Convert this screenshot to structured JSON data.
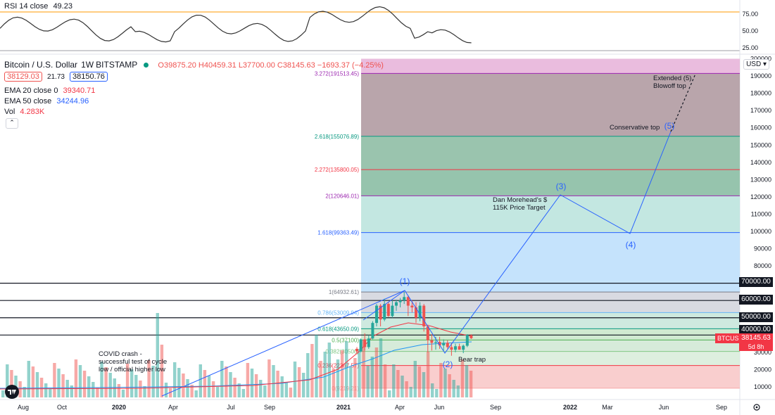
{
  "header": {
    "title": "Bitcoin / U.S. Dollar",
    "interval": "1W",
    "exchange": "BITSTAMP",
    "ohlc": {
      "o": "O39875.20",
      "h": "H40459.31",
      "l": "L37700.00",
      "c": "C38145.63",
      "chg": "−1693.37 (−4.25%)"
    },
    "bid": "38129.03",
    "spread": "21.73",
    "ask": "38150.76",
    "ema20_label": "EMA 20 close 0",
    "ema20_value": "39340.71",
    "ema50_label": "EMA 50 close",
    "ema50_value": "34244.96",
    "vol_label": "Vol",
    "vol_value": "4.283K",
    "currency": "USD",
    "collapse_glyph": "⌃"
  },
  "rsi": {
    "label": "RSI 14 close",
    "value": "49.23",
    "ticks": [
      "75.00",
      "50.00",
      "25.00"
    ]
  },
  "price_tags": {
    "btc_label": "BTCUSD",
    "btc_price": "38145.63",
    "btc_countdown": "5d 8h",
    "levels": [
      "70000.00",
      "60000.00",
      "50000.00",
      "40000.00"
    ]
  },
  "chart_data": {
    "type": "candlestick",
    "symbol": "BTCUSD",
    "y_axis_ticks": [
      10000,
      20000,
      30000,
      40000,
      50000,
      60000,
      70000,
      80000,
      90000,
      100000,
      110000,
      120000,
      130000,
      140000,
      150000,
      160000,
      170000,
      180000,
      190000,
      200000
    ],
    "ylim": [
      0,
      200000
    ],
    "x_axis_ticks": [
      "Aug",
      "Oct",
      "2020",
      "Apr",
      "Jul",
      "Sep",
      "2021",
      "Apr",
      "Jun",
      "Sep",
      "2022",
      "Mar",
      "Jun",
      "Sep"
    ],
    "horizontal_levels": [
      70000,
      60000,
      50000,
      40000
    ],
    "fibonacci": [
      {
        "label": "0(9219.21)",
        "price": 9219.21,
        "color": "#f7a9a9"
      },
      {
        "label": "0.236(22367.57)",
        "price": 22367.57,
        "color": "#f23645"
      },
      {
        "label": "0.382(30500)",
        "price": 30500,
        "color": "#81c784"
      },
      {
        "label": "0.5(37100)",
        "price": 37100,
        "color": "#4caf50"
      },
      {
        "label": "0.618(43650.09)",
        "price": 43650.09,
        "color": "#089981"
      },
      {
        "label": "0.786(53009.94)",
        "price": 53009.94,
        "color": "#64b5f6"
      },
      {
        "label": "1(64932.61)",
        "price": 64932.61,
        "color": "#787b86"
      },
      {
        "label": "1.618(99363.49)",
        "price": 99363.49,
        "color": "#2962ff"
      },
      {
        "label": "2(120646.01)",
        "price": 120646.01,
        "color": "#9c27b0"
      },
      {
        "label": "2.272(135800.05)",
        "price": 135800.05,
        "color": "#f23645"
      },
      {
        "label": "2.618(155076.89)",
        "price": 155076.89,
        "color": "#089981"
      },
      {
        "label": "3.272(191513.45)",
        "price": 191513.45,
        "color": "#9c27b0"
      }
    ],
    "candles": [
      [
        32000,
        33000,
        29000,
        30500
      ],
      [
        30500,
        38000,
        30000,
        37500
      ],
      [
        37500,
        41000,
        31000,
        33000
      ],
      [
        33000,
        40000,
        32000,
        38000
      ],
      [
        38000,
        48000,
        37500,
        47000
      ],
      [
        47000,
        58000,
        45000,
        57000
      ],
      [
        57000,
        58000,
        45000,
        49000
      ],
      [
        49000,
        61000,
        48000,
        58000
      ],
      [
        58000,
        59000,
        50500,
        51000
      ],
      [
        51000,
        60000,
        50000,
        57000
      ],
      [
        57000,
        60500,
        54000,
        59000
      ],
      [
        59000,
        61500,
        56000,
        60000
      ],
      [
        60000,
        64900,
        58000,
        62000
      ],
      [
        62000,
        63000,
        51000,
        57000
      ],
      [
        57000,
        60000,
        53000,
        56000
      ],
      [
        56000,
        59000,
        47000,
        50000
      ],
      [
        50000,
        59000,
        48000,
        57000
      ],
      [
        57000,
        58000,
        42000,
        45000
      ],
      [
        45000,
        46000,
        30000,
        37000
      ],
      [
        37000,
        40500,
        31000,
        35500
      ],
      [
        35500,
        39000,
        31500,
        36000
      ],
      [
        36000,
        39000,
        32000,
        34000
      ],
      [
        34000,
        37500,
        31000,
        35500
      ],
      [
        35500,
        37000,
        32000,
        33000
      ],
      [
        33000,
        35500,
        28000,
        31500
      ],
      [
        31500,
        35000,
        30000,
        33500
      ],
      [
        33500,
        35000,
        31500,
        31500
      ],
      [
        31500,
        34500,
        29500,
        33800
      ],
      [
        33800,
        40500,
        33000,
        40000
      ],
      [
        39875,
        40459,
        37700,
        38145
      ]
    ],
    "volume_ymax": 4.5,
    "waves": [
      {
        "label": "(1)",
        "x": "2021-04",
        "price": 64932
      },
      {
        "label": "(2)",
        "x": "2021-06",
        "price": 28800
      },
      {
        "label": "(3)",
        "x": "2021-12",
        "price": 120000
      },
      {
        "label": "(4)",
        "x": "2022-04",
        "price": 98000
      },
      {
        "label": "(5)",
        "x": "2022-06",
        "price": 155000
      }
    ],
    "annotations": [
      "COVID crash - successful test of cycle low / official higher low",
      "Bear trap",
      "Dan Morehead's $115K Price Target",
      "Conservative top",
      "Extended (5) Blowoff top"
    ]
  }
}
